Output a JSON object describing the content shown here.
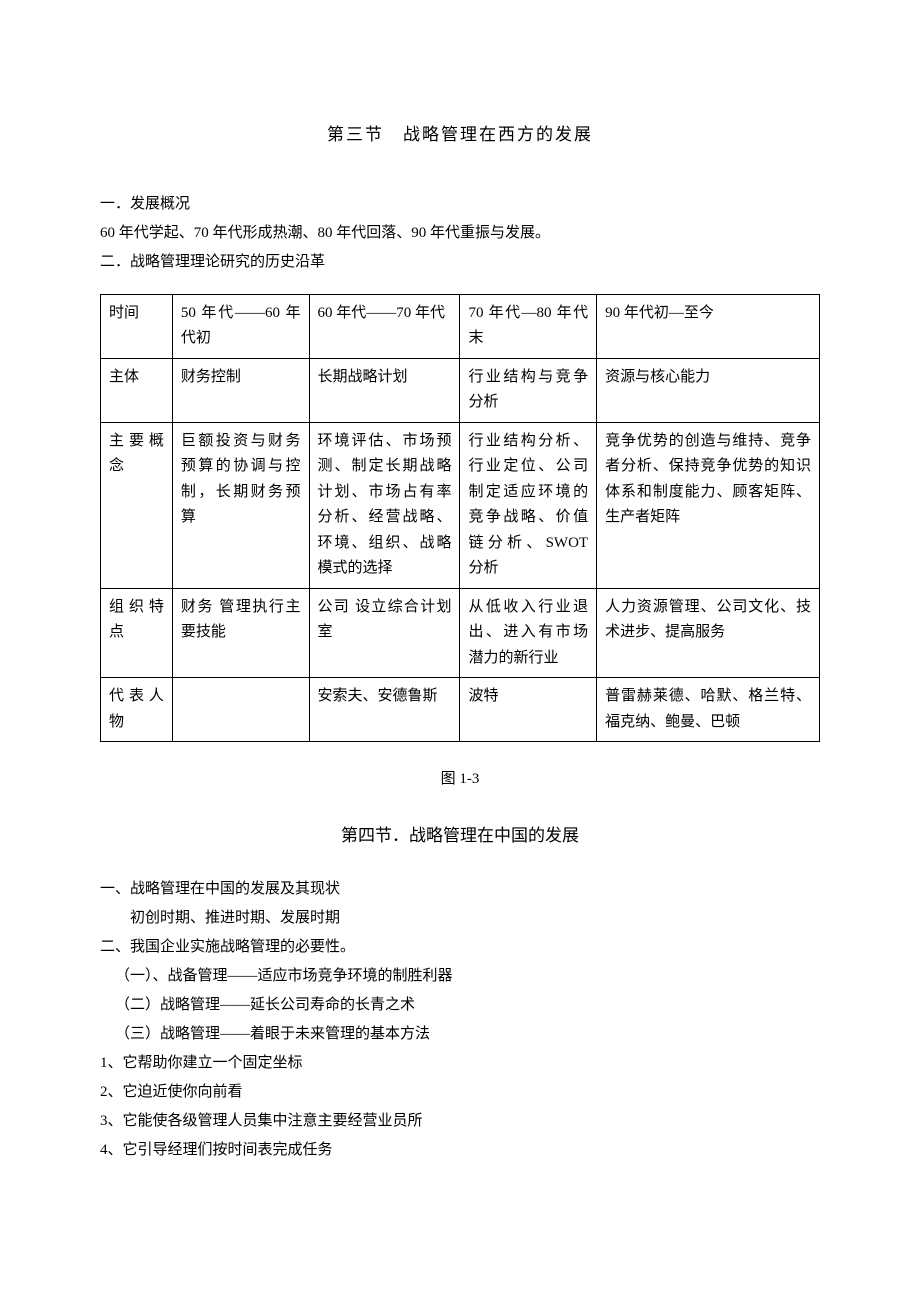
{
  "section3": {
    "title": "第三节　战略管理在西方的发展",
    "line1": "一．发展概况",
    "line2": "60 年代学起、70 年代形成热潮、80 年代回落、90 年代重振与发展。",
    "line3": "二．战略管理理论研究的历史沿革",
    "figure_caption": "图 1-3"
  },
  "table": {
    "columns": [
      "col0",
      "col1",
      "col2",
      "col3",
      "col4"
    ],
    "rows": [
      [
        "时间",
        "50 年代——60 年代初",
        "60 年代——70 年代",
        "70 年代—80 年代末",
        "90 年代初—至今"
      ],
      [
        "主体",
        "财务控制",
        "长期战略计划",
        "行业结构与竞争分析",
        "资源与核心能力"
      ],
      [
        "主要概念",
        "巨额投资与财务预算的协调与控制，长期财务预算",
        "环境评估、市场预测、制定长期战略计划、市场占有率分析、经营战略、环境、组织、战略模式的选择",
        "行业结构分析、行业定位、公司制定适应环境的竞争战略、价值链分析、SWOT 分析",
        "竞争优势的创造与维持、竞争者分析、保持竞争优势的知识体系和制度能力、顾客矩阵、生产者矩阵"
      ],
      [
        "组织特点",
        "财务 管理执行主要技能",
        "公司 设立综合计划室",
        "从低收入行业退出、进入有市场潜力的新行业",
        "人力资源管理、公司文化、技术进步、提高服务"
      ],
      [
        "代表人物",
        "",
        "安索夫、安德鲁斯",
        "波特",
        "普雷赫莱德、哈默、格兰特、福克纳、鲍曼、巴顿"
      ]
    ]
  },
  "section4": {
    "title": "第四节．战略管理在中国的发展",
    "lines": [
      {
        "cls": "",
        "text": "一、战略管理在中国的发展及其现状"
      },
      {
        "cls": "indent",
        "text": "初创时期、推进时期、发展时期"
      },
      {
        "cls": "",
        "text": "二、我国企业实施战略管理的必要性。"
      },
      {
        "cls": "indent-half",
        "text": "（一）、战备管理——适应市场竞争环境的制胜利器"
      },
      {
        "cls": "indent-half",
        "text": "（二）战略管理——延长公司寿命的长青之术"
      },
      {
        "cls": "indent-half",
        "text": "（三）战略管理——着眼于未来管理的基本方法"
      },
      {
        "cls": "",
        "text": "1、它帮助你建立一个固定坐标"
      },
      {
        "cls": "",
        "text": "2、它迫近使你向前看"
      },
      {
        "cls": "",
        "text": "3、它能使各级管理人员集中注意主要经营业员所"
      },
      {
        "cls": "",
        "text": "4、它引导经理们按时间表完成任务"
      }
    ]
  }
}
